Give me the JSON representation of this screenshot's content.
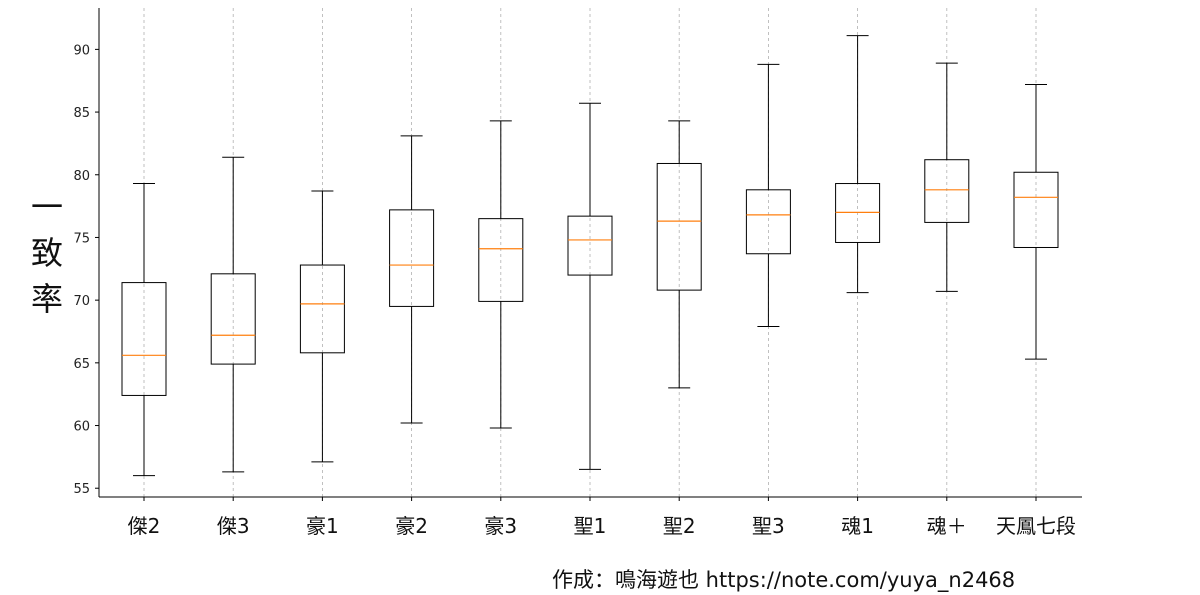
{
  "chart_data": {
    "type": "box",
    "title": "",
    "xlabel": "",
    "ylabel": "一致率",
    "ylim": [
      54.3,
      93.3
    ],
    "yticks": [
      55,
      60,
      65,
      70,
      75,
      80,
      85,
      90
    ],
    "grid": "vertical-dashed",
    "categories": [
      "傑2",
      "傑3",
      "豪1",
      "豪2",
      "豪3",
      "聖1",
      "聖2",
      "聖3",
      "魂1",
      "魂＋",
      "天鳳七段"
    ],
    "boxes": [
      {
        "whisker_low": 56.0,
        "q1": 62.4,
        "median": 65.6,
        "q3": 71.4,
        "whisker_high": 79.3
      },
      {
        "whisker_low": 56.3,
        "q1": 64.9,
        "median": 67.2,
        "q3": 72.1,
        "whisker_high": 81.4
      },
      {
        "whisker_low": 57.1,
        "q1": 65.8,
        "median": 69.7,
        "q3": 72.8,
        "whisker_high": 78.7
      },
      {
        "whisker_low": 60.2,
        "q1": 69.5,
        "median": 72.8,
        "q3": 77.2,
        "whisker_high": 83.1
      },
      {
        "whisker_low": 59.8,
        "q1": 69.9,
        "median": 74.1,
        "q3": 76.5,
        "whisker_high": 84.3
      },
      {
        "whisker_low": 56.5,
        "q1": 72.0,
        "median": 74.8,
        "q3": 76.7,
        "whisker_high": 85.7
      },
      {
        "whisker_low": 63.0,
        "q1": 70.8,
        "median": 76.3,
        "q3": 80.9,
        "whisker_high": 84.3
      },
      {
        "whisker_low": 67.9,
        "q1": 73.7,
        "median": 76.8,
        "q3": 78.8,
        "whisker_high": 88.8
      },
      {
        "whisker_low": 70.6,
        "q1": 74.6,
        "median": 77.0,
        "q3": 79.3,
        "whisker_high": 91.1
      },
      {
        "whisker_low": 70.7,
        "q1": 76.2,
        "median": 78.8,
        "q3": 81.2,
        "whisker_high": 88.9
      },
      {
        "whisker_low": 65.3,
        "q1": 74.2,
        "median": 78.2,
        "q3": 80.2,
        "whisker_high": 87.2
      }
    ],
    "colors": {
      "box": "#000000",
      "median": "#ff7f0e",
      "grid": "#b0b0b0"
    }
  },
  "footer": "作成：鳴海遊也 https://note.com/yuya_n2468"
}
